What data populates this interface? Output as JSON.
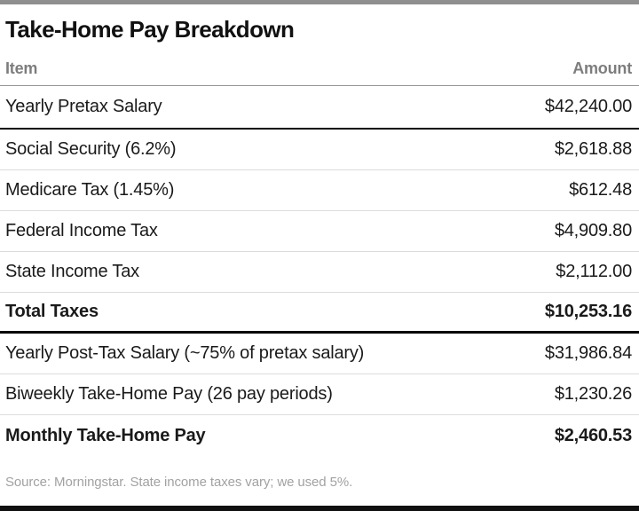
{
  "page": {
    "title": "Take-Home Pay Breakdown",
    "source_note": "Source: Morningstar. State income taxes vary; we used 5%."
  },
  "table": {
    "columns": [
      {
        "label": "Item",
        "align": "left"
      },
      {
        "label": "Amount",
        "align": "right"
      }
    ],
    "rows": [
      {
        "item": "Yearly Pretax Salary",
        "amount": "$42,240.00",
        "bold": false
      },
      {
        "item": "Social Security (6.2%)",
        "amount": "$2,618.88",
        "bold": false
      },
      {
        "item": "Medicare Tax (1.45%)",
        "amount": "$612.48",
        "bold": false
      },
      {
        "item": "Federal Income Tax",
        "amount": "$4,909.80",
        "bold": false
      },
      {
        "item": "State Income Tax",
        "amount": "$2,112.00",
        "bold": false
      },
      {
        "item": "Total Taxes",
        "amount": "$10,253.16",
        "bold": true
      },
      {
        "item": "Yearly Post-Tax Salary (~75% of pretax salary)",
        "amount": "$31,986.84",
        "bold": false
      },
      {
        "item": "Biweekly Take-Home Pay (26 pay periods)",
        "amount": "$1,230.26",
        "bold": false
      },
      {
        "item": "Monthly Take-Home Pay",
        "amount": "$2,460.53",
        "bold": true
      }
    ]
  },
  "colors": {
    "top_rule": "#8f8f8f",
    "bottom_rule": "#111111",
    "heavy_rule": "#000000",
    "thin_rule": "#dcdcdc",
    "header_rule": "#949494",
    "header_text": "#7d7d7d",
    "body_text": "#1a1a1a",
    "footnote_text": "#a2a2a2",
    "background": "#ffffff"
  }
}
